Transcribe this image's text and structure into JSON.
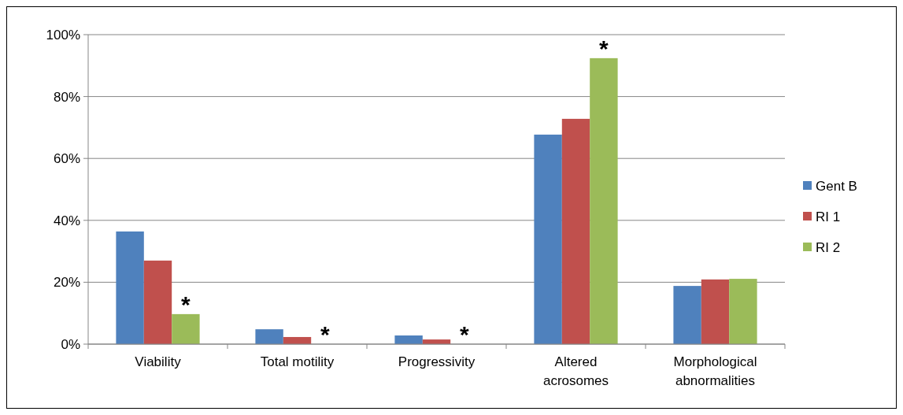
{
  "chart_data": {
    "type": "bar",
    "categories": [
      "Viability",
      "Total motility",
      "Progressivity",
      "Altered acrosomes",
      "Morphological abnormalities"
    ],
    "series": [
      {
        "name": "Gent B",
        "color": "#4f81bd",
        "values": [
          36.4,
          4.8,
          2.8,
          67.7,
          18.8
        ]
      },
      {
        "name": "RI 1",
        "color": "#c0504d",
        "values": [
          27,
          2.3,
          1.5,
          72.8,
          20.9
        ]
      },
      {
        "name": "RI 2",
        "color": "#9bbb59",
        "values": [
          9.7,
          0,
          0,
          92.4,
          21.1
        ]
      }
    ],
    "ylim": [
      0,
      100
    ],
    "yticks": [
      {
        "value": 0,
        "label": "0%"
      },
      {
        "value": 20,
        "label": "20%"
      },
      {
        "value": 40,
        "label": "40%"
      },
      {
        "value": 60,
        "label": "60%"
      },
      {
        "value": 80,
        "label": "80%"
      },
      {
        "value": 100,
        "label": "100%"
      }
    ],
    "grid": "y",
    "legend": "right",
    "annotations": [
      "*",
      "*",
      "*",
      "*"
    ]
  }
}
